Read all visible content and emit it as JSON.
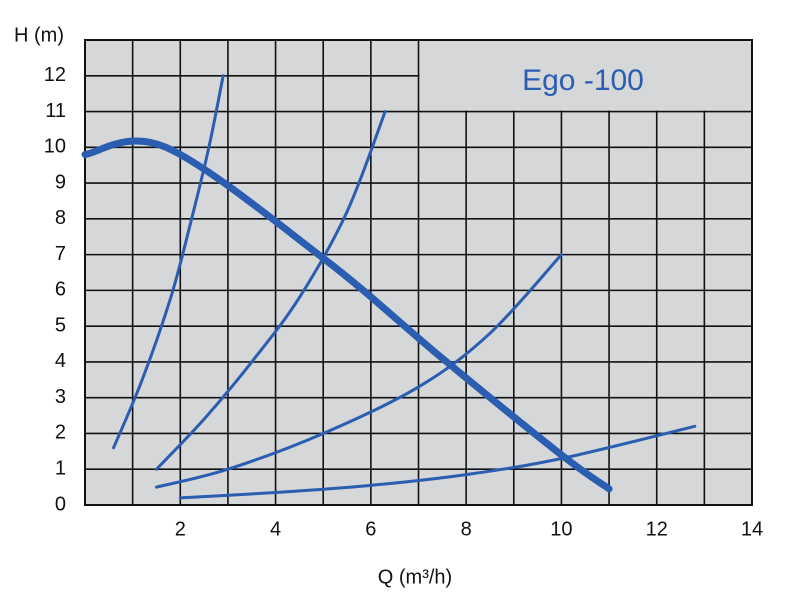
{
  "chart_data": {
    "type": "line",
    "y_label": "H (m)",
    "x_label": "Q (m³/h)",
    "annotation": "Ego -100",
    "xlim": [
      0,
      14
    ],
    "ylim": [
      0,
      13
    ],
    "xticks": [
      2,
      4,
      6,
      8,
      10,
      12,
      14
    ],
    "x_minor_ticks": [
      1,
      3,
      5,
      7,
      9,
      11,
      13
    ],
    "yticks": [
      0,
      1,
      2,
      3,
      4,
      5,
      6,
      7,
      8,
      9,
      10,
      11,
      12
    ],
    "grid": true,
    "background": "#d5d7d9",
    "series": [
      {
        "color": "#2b5db0",
        "line_width": 7,
        "x": [
          0,
          1.7,
          5,
          7.5,
          10,
          11
        ],
        "values": [
          9.8,
          10,
          6.9,
          4.1,
          1.4,
          0.45
        ]
      },
      {
        "color": "#2b5db0",
        "line_width": 3,
        "x": [
          0.6,
          1.2,
          1.8,
          2.2,
          2.6,
          2.9
        ],
        "values": [
          1.6,
          3.5,
          5.8,
          7.8,
          10,
          12
        ]
      },
      {
        "color": "#2b5db0",
        "line_width": 3,
        "x": [
          1.5,
          2.5,
          3.5,
          4.5,
          5.5,
          6.3
        ],
        "values": [
          1,
          2.4,
          4,
          5.8,
          8.2,
          11
        ]
      },
      {
        "color": "#2b5db0",
        "line_width": 3,
        "x": [
          1.5,
          3,
          5,
          7,
          8.5,
          10
        ],
        "values": [
          0.5,
          1,
          2,
          3.3,
          4.8,
          7
        ]
      },
      {
        "color": "#2b5db0",
        "line_width": 3,
        "x": [
          2,
          4,
          6,
          8,
          10,
          12.8
        ],
        "values": [
          0.2,
          0.35,
          0.55,
          0.85,
          1.3,
          2.2
        ]
      }
    ]
  }
}
